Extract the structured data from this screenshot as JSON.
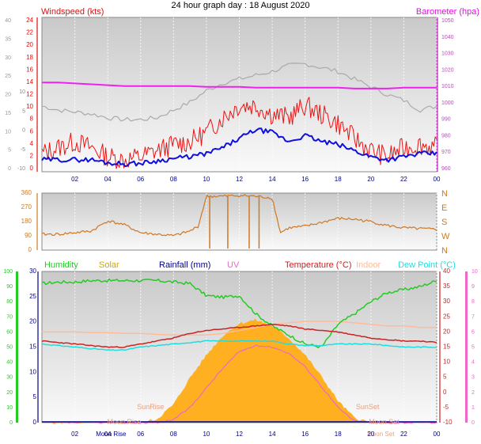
{
  "title": "24 hour graph day : 18 August 2020",
  "colors": {
    "wind_avg": "#1010dd",
    "wind_gust": "#ee1111",
    "barometer": "#ee22ee",
    "gray_series": "#aaaaaa",
    "direction": "#d07820",
    "humidity": "#22cc22",
    "solar": "#ffb020",
    "temperature": "#cc2222",
    "indoor": "#ffbb99",
    "dewpoint": "#22dddd",
    "uv": "#ee66cc",
    "rainfall": "#000088"
  },
  "chart_data": [
    {
      "type": "line",
      "left_label": "Windspeed (kts)",
      "right_label": "Barometer (hpa)",
      "x_ticks": [
        "02",
        "04",
        "06",
        "08",
        "10",
        "12",
        "14",
        "16",
        "18",
        "20",
        "22",
        "00"
      ],
      "y_left_outer_ticks": [
        "0",
        "5",
        "10",
        "15",
        "20",
        "25",
        "30",
        "35",
        "40"
      ],
      "y_left_inner_ticks": [
        "0",
        "2",
        "4",
        "6",
        "8",
        "10",
        "12",
        "14",
        "16",
        "18",
        "20",
        "22",
        "24"
      ],
      "y_left_extra_ticks": [
        "-10",
        "-5",
        "0",
        "5",
        "10"
      ],
      "y_right_ticks": [
        "960",
        "970",
        "980",
        "990",
        "1000",
        "1010",
        "1020",
        "1030",
        "1040",
        "1050"
      ],
      "x": [
        0,
        1,
        2,
        3,
        4,
        5,
        6,
        7,
        8,
        9,
        10,
        11,
        12,
        13,
        14,
        15,
        16,
        17,
        18,
        19,
        20,
        21,
        22,
        23,
        24
      ],
      "series": [
        {
          "values": [
            1,
            1,
            1,
            1,
            0.5,
            0.3,
            0.4,
            0.8,
            1.2,
            1.5,
            2.0,
            3.0,
            4.5,
            6.0,
            5.5,
            4.0,
            5.0,
            4.0,
            3.5,
            2.5,
            1.5,
            1.0,
            1.5,
            2.0,
            2.0
          ]
        },
        {
          "values": [
            2,
            3,
            4,
            3,
            1.5,
            1.0,
            1.5,
            2.5,
            3.5,
            4.0,
            5.5,
            8.0,
            10,
            10,
            8.5,
            8.0,
            10,
            8.5,
            7.0,
            4.5,
            2.5,
            1.5,
            3.0,
            3.5,
            3.0
          ]
        },
        {
          "values": [
            1012,
            1012,
            1011.5,
            1011,
            1010.5,
            1010,
            1010,
            1010,
            1010,
            1010,
            1009.5,
            1009.5,
            1009.5,
            1009,
            1009,
            1009,
            1009,
            1009,
            1009,
            1008.5,
            1008.5,
            1008.5,
            1009,
            1009,
            1009
          ]
        },
        {
          "values": [
            17,
            16,
            15.5,
            15,
            14,
            13.5,
            13.5,
            14,
            16,
            18,
            21,
            23,
            24,
            25,
            26,
            27.5,
            28,
            27,
            26,
            24,
            22,
            20,
            18.5,
            16,
            17
          ]
        }
      ]
    },
    {
      "type": "line",
      "y_left_ticks": [
        "0",
        "90",
        "180",
        "270",
        "360"
      ],
      "y_right_ticks": [
        "N",
        "W",
        "S",
        "E",
        "N"
      ],
      "x": [
        0,
        1,
        2,
        3,
        4,
        5,
        6,
        7,
        8,
        9,
        9.5,
        10,
        11,
        12,
        13,
        14,
        14.5,
        15,
        16,
        17,
        18,
        19,
        20,
        21,
        22,
        23,
        24
      ],
      "series": [
        {
          "values": [
            100,
            100,
            110,
            120,
            185,
            160,
            110,
            100,
            90,
            120,
            150,
            340,
            340,
            345,
            340,
            330,
            110,
            140,
            150,
            175,
            200,
            195,
            180,
            155,
            140,
            135,
            130
          ]
        }
      ]
    },
    {
      "type": "line",
      "legend": [
        "Humidity",
        "Solar",
        "Rainfall (mm)",
        "UV",
        "Temperature (°C)",
        "Indoor",
        "Dew Point (°C)"
      ],
      "y_left_outer_ticks": [
        "0",
        "10",
        "20",
        "30",
        "40",
        "50",
        "60",
        "70",
        "80",
        "90",
        "100"
      ],
      "y_left_inner_ticks": [
        "0",
        "5",
        "10",
        "15",
        "20",
        "25",
        "30"
      ],
      "y_right_ticks": [
        "-10",
        "-5",
        "0",
        "5",
        "10",
        "15",
        "20",
        "25",
        "30",
        "35",
        "40"
      ],
      "y_right_outer_ticks": [
        "0",
        "1",
        "2",
        "3",
        "4",
        "5",
        "6",
        "7",
        "8",
        "9",
        "10"
      ],
      "annotations": [
        "SunRise",
        "SunSet",
        "Moon Rise",
        "Moon Set",
        "Moon Rise",
        "Moon Set"
      ],
      "x": [
        0,
        1,
        2,
        3,
        4,
        5,
        6,
        7,
        8,
        9,
        10,
        11,
        12,
        13,
        14,
        15,
        16,
        17,
        18,
        19,
        20,
        21,
        22,
        23,
        24
      ],
      "series": [
        {
          "name": "Humidity",
          "values": [
            92,
            93,
            93,
            94,
            94,
            94,
            94,
            94,
            93,
            92,
            84,
            83,
            84,
            72,
            64,
            58,
            52,
            50,
            65,
            72,
            80,
            86,
            88,
            90,
            94
          ]
        },
        {
          "name": "Solar",
          "values": [
            0,
            0,
            0,
            0,
            0,
            0,
            0,
            30,
            150,
            370,
            560,
            720,
            820,
            850,
            800,
            700,
            560,
            380,
            180,
            40,
            0,
            0,
            0,
            0,
            0
          ]
        },
        {
          "name": "Temperature (°C)",
          "values": [
            17,
            16.5,
            16,
            15.5,
            15,
            15,
            16,
            17,
            18,
            19.5,
            20.5,
            21,
            21.5,
            22,
            22.5,
            22,
            21,
            20.5,
            20,
            19,
            18,
            17.5,
            17,
            17,
            16.5
          ]
        },
        {
          "name": "Indoor",
          "values": [
            20,
            20,
            20,
            19.8,
            19.8,
            19.5,
            19.5,
            19.2,
            19,
            19,
            19,
            19.5,
            20.5,
            21.5,
            22.5,
            23,
            23.5,
            23.5,
            23.5,
            23,
            22.5,
            22,
            22,
            21.5,
            21.5
          ]
        },
        {
          "name": "Dew Point (°C)",
          "values": [
            16,
            15.5,
            15,
            14.5,
            14,
            14,
            15,
            15.5,
            16,
            16.5,
            17,
            17,
            17,
            17,
            17,
            16,
            15.5,
            15.5,
            16,
            16,
            16,
            15.5,
            15,
            15,
            15
          ]
        },
        {
          "name": "UV",
          "values": [
            0,
            0,
            0,
            0,
            0,
            0,
            0,
            0,
            0.2,
            1.0,
            2.3,
            3.6,
            4.7,
            5.1,
            5.0,
            4.6,
            3.7,
            2.4,
            1.0,
            0.1,
            0,
            0,
            0,
            0,
            0
          ]
        },
        {
          "name": "Rainfall (mm)",
          "values": [
            0,
            0,
            0,
            0,
            0,
            0,
            0,
            0,
            0,
            0,
            0,
            0,
            0,
            0,
            0,
            0,
            0,
            0,
            0,
            0,
            0,
            0,
            0,
            0,
            0
          ]
        }
      ]
    }
  ]
}
